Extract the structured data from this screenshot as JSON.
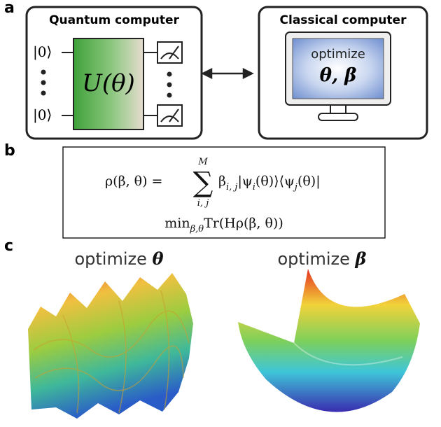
{
  "panel_labels": [
    "a",
    "b",
    "c"
  ],
  "quantum_computer": {
    "title": "Quantum computer",
    "input_states": [
      "|0⟩",
      "|0⟩"
    ],
    "gate": "U(θ)"
  },
  "classical_computer": {
    "title": "Classical computer",
    "screen_text": "optimize",
    "screen_params": "θ, β"
  },
  "equation": {
    "lhs": "ρ(β, θ) =",
    "sum_sign": "∑",
    "sum_upper": "M",
    "sum_lower": "i, j",
    "summand": [
      {
        "text": "β"
      },
      {
        "text": "i, j",
        "sub": true
      },
      {
        "text": "|ψ"
      },
      {
        "text": "i",
        "sub": true
      },
      {
        "text": "(θ)⟩⟨ψ"
      },
      {
        "text": "j",
        "sub": true
      },
      {
        "text": "(θ)|"
      }
    ],
    "objective": [
      {
        "text": "min"
      },
      {
        "text": "β,θ",
        "sub": true
      },
      {
        "text": "Tr(Hρ(β, θ))"
      }
    ]
  },
  "surfaces": [
    {
      "text": "optimize",
      "symbol": "θ"
    },
    {
      "text": "optimize",
      "symbol": "β"
    }
  ]
}
